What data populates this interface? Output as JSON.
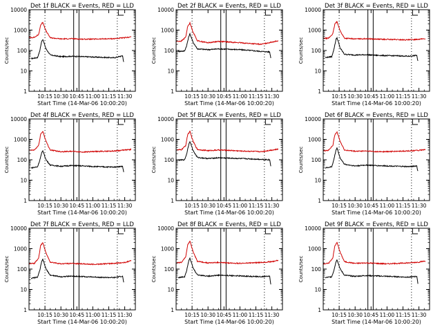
{
  "figure": {
    "ylabel": "Counts/sec",
    "xlabel": "Start Time (14-Mar-06 10:00:20)",
    "colors": {
      "events": "#000000",
      "lld": "#d00000",
      "axes": "#000000"
    }
  },
  "chart_data": [
    {
      "type": "line",
      "title": "Det 1f BLACK = Events, RED = LLD",
      "xlabel": "Start Time (14-Mar-06 10:00:20)",
      "ylabel": "Counts/sec",
      "yscale": "log",
      "ylim": [
        1,
        10000
      ],
      "ytick_labels": [
        "1",
        "10",
        "100",
        "1000",
        "10000"
      ],
      "xlim": [
        "10:00",
        "11:40"
      ],
      "xtick_labels": [
        "10:15",
        "10:30",
        "10:45",
        "11:00",
        "11:15",
        "11:30"
      ],
      "xtick_values": [
        15,
        30,
        45,
        60,
        75,
        90
      ],
      "dotted_vlines": [
        15,
        83
      ],
      "solid_vlines": [
        42,
        47
      ],
      "series": [
        {
          "name": "Events",
          "color": "#000000",
          "x": [
            2,
            8,
            10,
            12,
            13,
            16,
            20,
            30,
            40,
            50,
            60,
            70,
            80,
            88,
            89
          ],
          "y": [
            40,
            45,
            90,
            300,
            350,
            120,
            60,
            50,
            52,
            50,
            48,
            46,
            44,
            55,
            28
          ]
        },
        {
          "name": "LLD",
          "color": "#d00000",
          "x": [
            0,
            5,
            9,
            11,
            13,
            16,
            20,
            30,
            40,
            50,
            60,
            70,
            80,
            90,
            96
          ],
          "y": [
            430,
            440,
            600,
            1800,
            2400,
            900,
            420,
            370,
            380,
            360,
            360,
            370,
            380,
            420,
            470
          ]
        }
      ]
    },
    {
      "type": "line",
      "title": "Det 2f BLACK = Events, RED = LLD",
      "xlabel": "Start Time (14-Mar-06 10:00:20)",
      "ylabel": "Counts/sec",
      "yscale": "log",
      "ylim": [
        1,
        10000
      ],
      "ytick_labels": [
        "1",
        "10",
        "100",
        "1000",
        "10000"
      ],
      "xlim": [
        "10:00",
        "11:40"
      ],
      "xtick_labels": [
        "10:15",
        "10:30",
        "10:45",
        "11:00",
        "11:15",
        "11:30"
      ],
      "xtick_values": [
        15,
        30,
        45,
        60,
        75,
        90
      ],
      "dotted_vlines": [
        15,
        83
      ],
      "solid_vlines": [
        42,
        47
      ],
      "series": [
        {
          "name": "Events",
          "color": "#000000",
          "x": [
            2,
            8,
            10,
            12,
            13,
            16,
            20,
            30,
            40,
            50,
            60,
            70,
            80,
            88,
            89
          ],
          "y": [
            90,
            95,
            180,
            500,
            650,
            250,
            120,
            110,
            120,
            115,
            110,
            100,
            90,
            85,
            45
          ]
        },
        {
          "name": "LLD",
          "color": "#d00000",
          "x": [
            0,
            5,
            9,
            11,
            13,
            16,
            20,
            30,
            40,
            50,
            60,
            70,
            80,
            90,
            96
          ],
          "y": [
            280,
            290,
            450,
            1600,
            2200,
            800,
            300,
            240,
            280,
            260,
            240,
            220,
            200,
            260,
            300
          ]
        }
      ]
    },
    {
      "type": "line",
      "title": "Det 3f BLACK = Events, RED = LLD",
      "xlabel": "Start Time (14-Mar-06 10:00:20)",
      "ylabel": "Counts/sec",
      "yscale": "log",
      "ylim": [
        1,
        10000
      ],
      "ytick_labels": [
        "1",
        "10",
        "100",
        "1000",
        "10000"
      ],
      "xlim": [
        "10:00",
        "11:40"
      ],
      "xtick_labels": [
        "10:15",
        "10:30",
        "10:45",
        "11:00",
        "11:15",
        "11:30"
      ],
      "xtick_values": [
        15,
        30,
        45,
        60,
        75,
        90
      ],
      "dotted_vlines": [
        15,
        83
      ],
      "solid_vlines": [
        42,
        47
      ],
      "series": [
        {
          "name": "Events",
          "color": "#000000",
          "x": [
            2,
            8,
            10,
            12,
            13,
            16,
            20,
            30,
            40,
            50,
            60,
            70,
            80,
            88,
            89
          ],
          "y": [
            45,
            50,
            110,
            350,
            420,
            130,
            65,
            60,
            62,
            58,
            56,
            55,
            52,
            58,
            30
          ]
        },
        {
          "name": "LLD",
          "color": "#d00000",
          "x": [
            0,
            5,
            9,
            11,
            13,
            16,
            20,
            30,
            40,
            50,
            60,
            70,
            80,
            90,
            96
          ],
          "y": [
            390,
            400,
            650,
            2000,
            2600,
            900,
            400,
            370,
            380,
            360,
            350,
            340,
            330,
            360,
            380
          ]
        }
      ]
    },
    {
      "type": "line",
      "title": "Det 4f BLACK = Events, RED = LLD",
      "xlabel": "Start Time (14-Mar-06 10:00:20)",
      "ylabel": "Counts/sec",
      "yscale": "log",
      "ylim": [
        1,
        10000
      ],
      "ytick_labels": [
        "1",
        "10",
        "100",
        "1000",
        "10000"
      ],
      "xlim": [
        "10:00",
        "11:40"
      ],
      "xtick_labels": [
        "10:15",
        "10:30",
        "10:45",
        "11:00",
        "11:15",
        "11:30"
      ],
      "xtick_values": [
        15,
        30,
        45,
        60,
        75,
        90
      ],
      "dotted_vlines": [
        15,
        83
      ],
      "solid_vlines": [
        42,
        47
      ],
      "series": [
        {
          "name": "Events",
          "color": "#000000",
          "x": [
            2,
            8,
            10,
            12,
            13,
            16,
            20,
            30,
            40,
            50,
            60,
            70,
            80,
            88,
            89
          ],
          "y": [
            40,
            45,
            90,
            220,
            280,
            100,
            55,
            48,
            52,
            50,
            47,
            45,
            44,
            48,
            25
          ]
        },
        {
          "name": "LLD",
          "color": "#d00000",
          "x": [
            0,
            5,
            9,
            11,
            13,
            16,
            20,
            30,
            40,
            50,
            60,
            70,
            80,
            90,
            96
          ],
          "y": [
            290,
            300,
            500,
            1800,
            2500,
            800,
            300,
            250,
            260,
            240,
            250,
            260,
            270,
            300,
            320
          ]
        }
      ]
    },
    {
      "type": "line",
      "title": "Det 5f BLACK = Events, RED = LLD",
      "xlabel": "Start Time (14-Mar-06 10:00:20)",
      "ylabel": "Counts/sec",
      "yscale": "log",
      "ylim": [
        1,
        10000
      ],
      "ytick_labels": [
        "1",
        "10",
        "100",
        "1000",
        "10000"
      ],
      "xlim": [
        "10:00",
        "11:40"
      ],
      "xtick_labels": [
        "10:15",
        "10:30",
        "10:45",
        "11:00",
        "11:15",
        "11:30"
      ],
      "xtick_values": [
        15,
        30,
        45,
        60,
        75,
        90
      ],
      "dotted_vlines": [
        15,
        83
      ],
      "solid_vlines": [
        42,
        47
      ],
      "series": [
        {
          "name": "Events",
          "color": "#000000",
          "x": [
            2,
            8,
            10,
            12,
            13,
            16,
            20,
            30,
            40,
            50,
            60,
            70,
            80,
            88,
            89
          ],
          "y": [
            95,
            100,
            200,
            600,
            800,
            280,
            130,
            115,
            125,
            120,
            115,
            110,
            105,
            100,
            50
          ]
        },
        {
          "name": "LLD",
          "color": "#d00000",
          "x": [
            0,
            5,
            9,
            11,
            13,
            16,
            20,
            30,
            40,
            50,
            60,
            70,
            80,
            90,
            96
          ],
          "y": [
            300,
            310,
            500,
            1800,
            2400,
            800,
            320,
            280,
            300,
            290,
            270,
            260,
            250,
            300,
            330
          ]
        }
      ]
    },
    {
      "type": "line",
      "title": "Det 6f BLACK = Events, RED = LLD",
      "xlabel": "Start Time (14-Mar-06 10:00:20)",
      "ylabel": "Counts/sec",
      "yscale": "log",
      "ylim": [
        1,
        10000
      ],
      "ytick_labels": [
        "1",
        "10",
        "100",
        "1000",
        "10000"
      ],
      "xlim": [
        "10:00",
        "11:40"
      ],
      "xtick_labels": [
        "10:15",
        "10:30",
        "10:45",
        "11:00",
        "11:15",
        "11:30"
      ],
      "xtick_values": [
        15,
        30,
        45,
        60,
        75,
        90
      ],
      "dotted_vlines": [
        15,
        83
      ],
      "solid_vlines": [
        42,
        47
      ],
      "series": [
        {
          "name": "Events",
          "color": "#000000",
          "x": [
            2,
            8,
            10,
            12,
            13,
            16,
            20,
            30,
            40,
            50,
            60,
            70,
            80,
            88,
            89
          ],
          "y": [
            40,
            45,
            100,
            300,
            380,
            120,
            60,
            50,
            55,
            52,
            50,
            48,
            46,
            50,
            27
          ]
        },
        {
          "name": "LLD",
          "color": "#d00000",
          "x": [
            0,
            5,
            9,
            11,
            13,
            16,
            20,
            30,
            40,
            50,
            60,
            70,
            80,
            90,
            96
          ],
          "y": [
            280,
            290,
            500,
            1700,
            2300,
            800,
            300,
            260,
            270,
            250,
            250,
            260,
            270,
            290,
            310
          ]
        }
      ]
    },
    {
      "type": "line",
      "title": "Det 7f BLACK = Events, RED = LLD",
      "xlabel": "Start Time (14-Mar-06 10:00:20)",
      "ylabel": "Counts/sec",
      "yscale": "log",
      "ylim": [
        1,
        10000
      ],
      "ytick_labels": [
        "1",
        "10",
        "100",
        "1000",
        "10000"
      ],
      "xlim": [
        "10:00",
        "11:40"
      ],
      "xtick_labels": [
        "10:15",
        "10:30",
        "10:45",
        "11:00",
        "11:15",
        "11:30"
      ],
      "xtick_values": [
        15,
        30,
        45,
        60,
        75,
        90
      ],
      "dotted_vlines": [
        15,
        83
      ],
      "solid_vlines": [
        42,
        47
      ],
      "series": [
        {
          "name": "Events",
          "color": "#000000",
          "x": [
            2,
            8,
            10,
            12,
            13,
            16,
            20,
            30,
            40,
            50,
            60,
            70,
            80,
            88,
            89
          ],
          "y": [
            35,
            40,
            80,
            240,
            300,
            100,
            50,
            42,
            45,
            43,
            41,
            39,
            38,
            45,
            22
          ]
        },
        {
          "name": "LLD",
          "color": "#d00000",
          "x": [
            0,
            5,
            9,
            11,
            13,
            16,
            20,
            30,
            40,
            50,
            60,
            70,
            80,
            90,
            96
          ],
          "y": [
            180,
            190,
            350,
            1400,
            2000,
            600,
            220,
            180,
            190,
            180,
            170,
            180,
            190,
            210,
            260
          ]
        }
      ]
    },
    {
      "type": "line",
      "title": "Det 8f BLACK = Events, RED = LLD",
      "xlabel": "Start Time (14-Mar-06 10:00:20)",
      "ylabel": "Counts/sec",
      "yscale": "log",
      "ylim": [
        1,
        10000
      ],
      "ytick_labels": [
        "1",
        "10",
        "100",
        "1000",
        "10000"
      ],
      "xlim": [
        "10:00",
        "11:40"
      ],
      "xtick_labels": [
        "10:15",
        "10:30",
        "10:45",
        "11:00",
        "11:15",
        "11:30"
      ],
      "xtick_values": [
        15,
        30,
        45,
        60,
        75,
        90
      ],
      "dotted_vlines": [
        15,
        83
      ],
      "solid_vlines": [
        42,
        47
      ],
      "series": [
        {
          "name": "Events",
          "color": "#000000",
          "x": [
            2,
            8,
            10,
            12,
            13,
            16,
            20,
            30,
            40,
            50,
            60,
            70,
            80,
            88,
            89
          ],
          "y": [
            38,
            42,
            90,
            280,
            350,
            110,
            52,
            45,
            50,
            48,
            46,
            44,
            42,
            45,
            18
          ]
        },
        {
          "name": "LLD",
          "color": "#d00000",
          "x": [
            0,
            5,
            9,
            11,
            13,
            16,
            20,
            30,
            40,
            50,
            60,
            70,
            80,
            90,
            96
          ],
          "y": [
            200,
            210,
            400,
            1600,
            2300,
            700,
            240,
            200,
            210,
            200,
            190,
            200,
            210,
            230,
            270
          ]
        }
      ]
    },
    {
      "type": "line",
      "title": "Det 9f BLACK = Events, RED = LLD",
      "xlabel": "Start Time (14-Mar-06 10:00:20)",
      "ylabel": "Counts/sec",
      "yscale": "log",
      "ylim": [
        1,
        10000
      ],
      "ytick_labels": [
        "1",
        "10",
        "100",
        "1000",
        "10000"
      ],
      "xlim": [
        "10:00",
        "11:40"
      ],
      "xtick_labels": [
        "10:15",
        "10:30",
        "10:45",
        "11:00",
        "11:15",
        "11:30"
      ],
      "xtick_values": [
        15,
        30,
        45,
        60,
        75,
        90
      ],
      "dotted_vlines": [
        15,
        83
      ],
      "solid_vlines": [
        42,
        47
      ],
      "series": [
        {
          "name": "Events",
          "color": "#000000",
          "x": [
            2,
            8,
            10,
            12,
            13,
            16,
            20,
            30,
            40,
            50,
            60,
            70,
            80,
            88,
            89
          ],
          "y": [
            38,
            42,
            85,
            230,
            290,
            100,
            50,
            44,
            48,
            46,
            44,
            42,
            40,
            44,
            20
          ]
        },
        {
          "name": "LLD",
          "color": "#d00000",
          "x": [
            0,
            5,
            9,
            11,
            13,
            16,
            20,
            30,
            40,
            50,
            60,
            70,
            80,
            90,
            96
          ],
          "y": [
            180,
            190,
            350,
            1400,
            2000,
            650,
            230,
            190,
            200,
            190,
            180,
            190,
            200,
            220,
            250
          ]
        }
      ]
    }
  ]
}
